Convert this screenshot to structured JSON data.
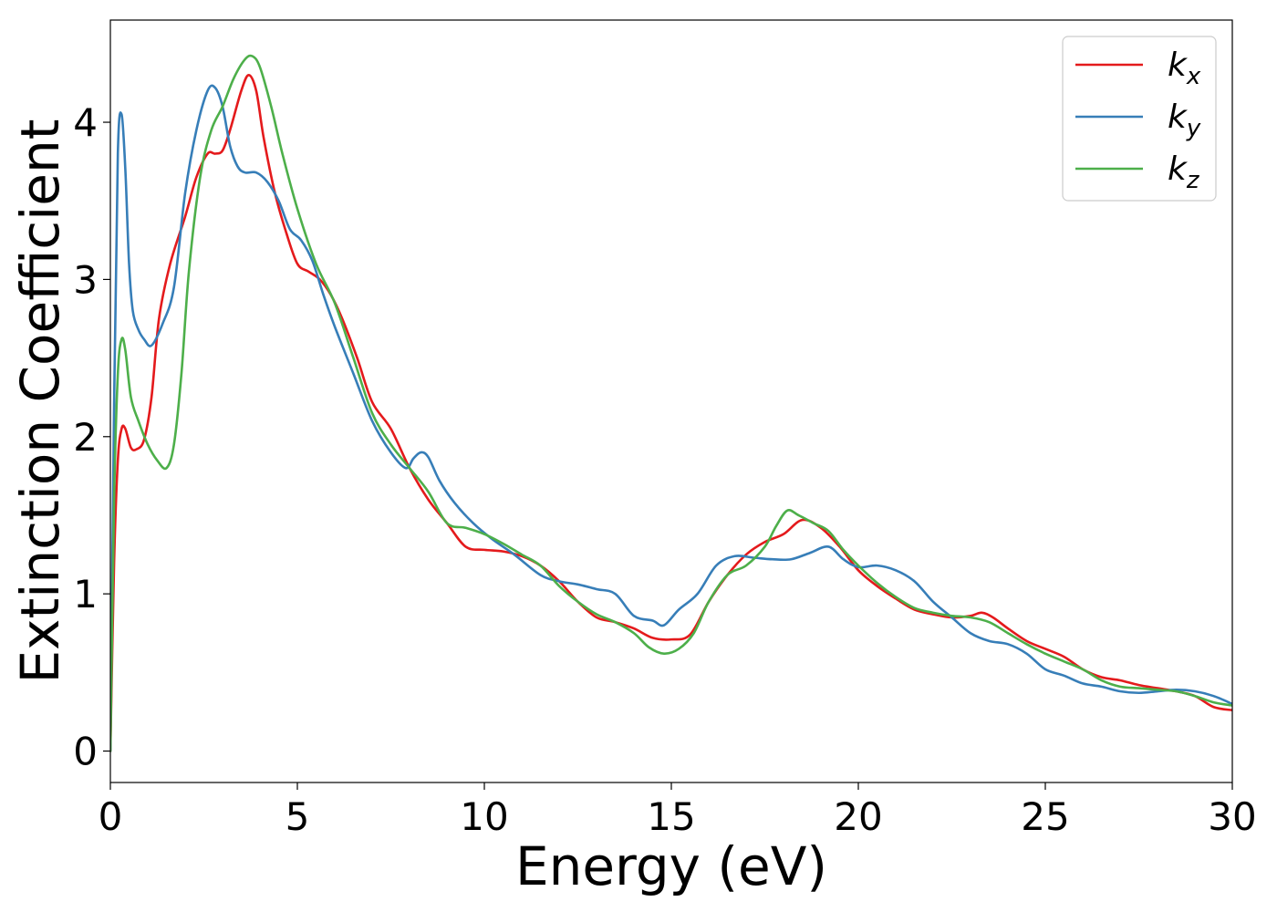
{
  "chart_data": {
    "type": "line",
    "xlabel": "Energy (eV)",
    "ylabel": "Extinction Coefficient",
    "xlim": [
      0,
      30
    ],
    "ylim": [
      -0.2,
      4.65
    ],
    "x_ticks": [
      0,
      5,
      10,
      15,
      20,
      25,
      30
    ],
    "y_ticks": [
      0,
      1,
      2,
      3,
      4
    ],
    "grid": false,
    "legend_position": "top-right",
    "series": [
      {
        "name": "k",
        "subscript": "x",
        "color": "#e41a1c",
        "x": [
          0,
          0.1,
          0.2,
          0.3,
          0.4,
          0.55,
          0.7,
          0.9,
          1.1,
          1.3,
          1.6,
          2.0,
          2.3,
          2.6,
          2.8,
          3.0,
          3.2,
          3.5,
          3.7,
          3.9,
          4.1,
          4.4,
          4.7,
          5.0,
          5.3,
          5.6,
          5.9,
          6.2,
          6.6,
          7.0,
          7.5,
          8.0,
          8.5,
          9.0,
          9.5,
          10.0,
          10.5,
          11.0,
          11.5,
          12.0,
          12.5,
          13.0,
          13.5,
          14.0,
          14.5,
          15.0,
          15.5,
          16.0,
          16.5,
          17.0,
          17.5,
          18.0,
          18.5,
          19.0,
          19.5,
          20.0,
          20.5,
          21.0,
          21.5,
          22.0,
          22.5,
          23.0,
          23.3,
          23.6,
          24.0,
          24.5,
          25.0,
          25.5,
          26.0,
          26.5,
          27.0,
          27.5,
          28.0,
          28.5,
          29.0,
          29.5,
          30.0
        ],
        "values": [
          0,
          1.2,
          1.85,
          2.05,
          2.05,
          1.93,
          1.92,
          1.98,
          2.25,
          2.75,
          3.1,
          3.4,
          3.65,
          3.8,
          3.8,
          3.82,
          3.95,
          4.2,
          4.3,
          4.2,
          3.9,
          3.55,
          3.3,
          3.1,
          3.05,
          3.0,
          2.9,
          2.75,
          2.5,
          2.22,
          2.05,
          1.8,
          1.6,
          1.45,
          1.3,
          1.28,
          1.27,
          1.24,
          1.18,
          1.08,
          0.95,
          0.85,
          0.82,
          0.78,
          0.72,
          0.71,
          0.74,
          0.95,
          1.12,
          1.25,
          1.33,
          1.38,
          1.47,
          1.42,
          1.3,
          1.15,
          1.05,
          0.97,
          0.9,
          0.87,
          0.85,
          0.86,
          0.88,
          0.85,
          0.78,
          0.7,
          0.65,
          0.6,
          0.52,
          0.47,
          0.45,
          0.42,
          0.4,
          0.38,
          0.35,
          0.28,
          0.26
        ]
      },
      {
        "name": "k",
        "subscript": "y",
        "color": "#377eb8",
        "x": [
          0,
          0.1,
          0.2,
          0.3,
          0.4,
          0.5,
          0.6,
          0.75,
          0.9,
          1.1,
          1.4,
          1.7,
          2.0,
          2.3,
          2.6,
          2.8,
          3.0,
          3.2,
          3.4,
          3.6,
          3.9,
          4.2,
          4.5,
          4.8,
          5.1,
          5.4,
          5.7,
          6.0,
          6.5,
          7.0,
          7.5,
          7.9,
          8.1,
          8.3,
          8.5,
          8.8,
          9.2,
          9.7,
          10.2,
          10.8,
          11.5,
          12.0,
          12.5,
          13.0,
          13.5,
          14.0,
          14.5,
          14.8,
          15.2,
          15.7,
          16.2,
          16.7,
          17.2,
          17.7,
          18.2,
          18.7,
          19.2,
          19.6,
          20.0,
          20.5,
          21.0,
          21.5,
          22.0,
          22.5,
          23.0,
          23.5,
          24.0,
          24.5,
          25.0,
          25.5,
          26.0,
          26.5,
          27.0,
          27.5,
          28.0,
          28.5,
          29.0,
          29.5,
          30.0
        ],
        "values": [
          0,
          2.2,
          3.8,
          4.05,
          3.7,
          3.1,
          2.8,
          2.68,
          2.62,
          2.58,
          2.72,
          2.95,
          3.55,
          3.95,
          4.2,
          4.22,
          4.1,
          3.85,
          3.72,
          3.68,
          3.68,
          3.62,
          3.5,
          3.32,
          3.25,
          3.12,
          2.9,
          2.7,
          2.4,
          2.1,
          1.9,
          1.8,
          1.86,
          1.9,
          1.87,
          1.72,
          1.58,
          1.45,
          1.35,
          1.25,
          1.12,
          1.08,
          1.06,
          1.03,
          1.0,
          0.86,
          0.83,
          0.8,
          0.9,
          1.0,
          1.18,
          1.24,
          1.23,
          1.22,
          1.22,
          1.26,
          1.3,
          1.22,
          1.17,
          1.18,
          1.15,
          1.08,
          0.95,
          0.85,
          0.75,
          0.7,
          0.68,
          0.62,
          0.52,
          0.48,
          0.43,
          0.41,
          0.38,
          0.37,
          0.38,
          0.39,
          0.38,
          0.35,
          0.3
        ]
      },
      {
        "name": "k",
        "subscript": "z",
        "color": "#4daf4a",
        "x": [
          0,
          0.1,
          0.2,
          0.3,
          0.4,
          0.55,
          0.75,
          1.0,
          1.25,
          1.5,
          1.7,
          1.9,
          2.1,
          2.4,
          2.7,
          3.0,
          3.3,
          3.6,
          3.8,
          4.0,
          4.3,
          4.6,
          5.0,
          5.5,
          6.0,
          6.5,
          7.0,
          7.5,
          8.0,
          8.5,
          9.0,
          9.5,
          10.0,
          10.5,
          11.0,
          11.5,
          12.0,
          12.5,
          13.0,
          13.5,
          14.0,
          14.4,
          14.8,
          15.2,
          15.6,
          16.0,
          16.5,
          17.0,
          17.5,
          17.8,
          18.1,
          18.4,
          18.8,
          19.2,
          19.6,
          20.0,
          20.5,
          21.0,
          21.5,
          22.0,
          22.5,
          23.0,
          23.5,
          24.0,
          24.5,
          25.0,
          25.5,
          26.0,
          26.5,
          27.0,
          27.5,
          28.0,
          28.5,
          29.0,
          29.5,
          30.0
        ],
        "values": [
          0,
          1.6,
          2.4,
          2.62,
          2.55,
          2.25,
          2.1,
          1.95,
          1.85,
          1.8,
          1.95,
          2.4,
          3.05,
          3.65,
          3.95,
          4.1,
          4.28,
          4.4,
          4.42,
          4.35,
          4.1,
          3.8,
          3.45,
          3.1,
          2.85,
          2.5,
          2.15,
          1.95,
          1.8,
          1.65,
          1.45,
          1.42,
          1.38,
          1.32,
          1.25,
          1.18,
          1.05,
          0.95,
          0.87,
          0.82,
          0.75,
          0.66,
          0.62,
          0.65,
          0.75,
          0.95,
          1.12,
          1.18,
          1.3,
          1.43,
          1.53,
          1.5,
          1.45,
          1.4,
          1.28,
          1.18,
          1.07,
          0.98,
          0.91,
          0.88,
          0.86,
          0.85,
          0.82,
          0.75,
          0.68,
          0.62,
          0.57,
          0.52,
          0.45,
          0.41,
          0.4,
          0.39,
          0.38,
          0.35,
          0.31,
          0.29
        ]
      }
    ]
  }
}
